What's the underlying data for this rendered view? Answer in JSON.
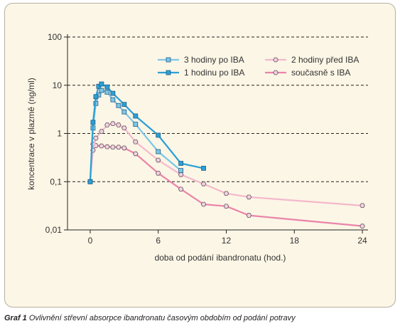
{
  "chart_data": {
    "type": "line",
    "x_scale": "linear",
    "y_scale": "log",
    "xlim": [
      -2,
      24.5
    ],
    "ylim": [
      0.01,
      100
    ],
    "x_ticks": [
      0,
      6,
      12,
      18,
      24
    ],
    "x_tick_labels": [
      "0",
      "6",
      "12",
      "18",
      "24"
    ],
    "y_ticks": [
      0.01,
      0.1,
      1,
      10,
      100
    ],
    "y_tick_labels": [
      "0,01",
      "0,1",
      "1",
      "10",
      "100"
    ],
    "xlabel": "doba od podání ibandronatu (hod.)",
    "ylabel": "koncentrace v plazmě (ng/ml)",
    "grid": "horizontal dashed",
    "legend_position": "top-right",
    "series": [
      {
        "name": "3 hodiny po IBA",
        "color": "#7cc6e6",
        "marker": "square",
        "x": [
          0,
          0.25,
          0.5,
          0.75,
          1,
          1.5,
          2,
          2.5,
          3,
          4,
          6,
          8
        ],
        "y": [
          0.1,
          1.3,
          4.2,
          6.3,
          7.8,
          7.2,
          5.0,
          3.8,
          2.8,
          1.55,
          0.42,
          0.17
        ]
      },
      {
        "name": "1 hodinu po IBA",
        "color": "#2ba0d6",
        "marker": "square",
        "x": [
          0,
          0.25,
          0.5,
          0.75,
          1,
          1.5,
          2,
          3,
          4,
          6,
          8,
          10
        ],
        "y": [
          0.1,
          1.7,
          5.8,
          9.5,
          10.6,
          9.2,
          6.8,
          4.0,
          2.3,
          0.92,
          0.24,
          0.19
        ]
      },
      {
        "name": "2 hodiny před IBA",
        "color": "#f4b8cc",
        "marker": "hexagon",
        "x": [
          0,
          0.25,
          0.5,
          1,
          1.5,
          2,
          2.5,
          3,
          4,
          6,
          8,
          10,
          12,
          14,
          24
        ],
        "y": [
          0.1,
          0.45,
          0.8,
          1.1,
          1.5,
          1.6,
          1.5,
          1.3,
          0.67,
          0.28,
          0.14,
          0.09,
          0.057,
          0.048,
          0.032
        ]
      },
      {
        "name": "současně s IBA",
        "color": "#ea84aa",
        "marker": "hexagon",
        "x": [
          0,
          0.25,
          0.5,
          1,
          1.5,
          2,
          2.5,
          3,
          4,
          6,
          8,
          10,
          12,
          14,
          24
        ],
        "y": [
          0.1,
          0.6,
          0.56,
          0.55,
          0.53,
          0.52,
          0.52,
          0.5,
          0.38,
          0.15,
          0.07,
          0.034,
          0.031,
          0.02,
          0.012
        ]
      }
    ]
  },
  "caption": {
    "lead": "Graf 1",
    "text": "Ovlivnění střevní absorpce ibandronatu časovým obdobím od podání potravy"
  }
}
